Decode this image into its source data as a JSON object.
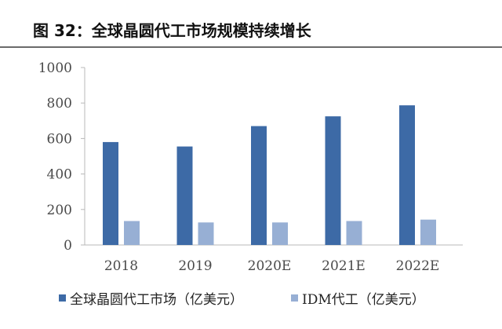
{
  "figure": {
    "title": "图 32：全球晶圆代工市场规模持续增长"
  },
  "chart_data": {
    "type": "bar",
    "title": "图 32：全球晶圆代工市场规模持续增长",
    "xlabel": "",
    "ylabel": "",
    "categories": [
      "2018",
      "2019",
      "2020E",
      "2021E",
      "2022E"
    ],
    "ylim": [
      0,
      1000
    ],
    "yticks": [
      0,
      200,
      400,
      600,
      800,
      1000
    ],
    "grid": false,
    "legend_position": "bottom",
    "series": [
      {
        "name": "全球晶圆代工市场（亿美元）",
        "color": "#3d6aa6",
        "values": [
          580,
          555,
          670,
          725,
          787
        ]
      },
      {
        "name": "IDM代工（亿美元）",
        "color": "#97afd4",
        "values": [
          135,
          127,
          127,
          135,
          143
        ]
      }
    ]
  }
}
